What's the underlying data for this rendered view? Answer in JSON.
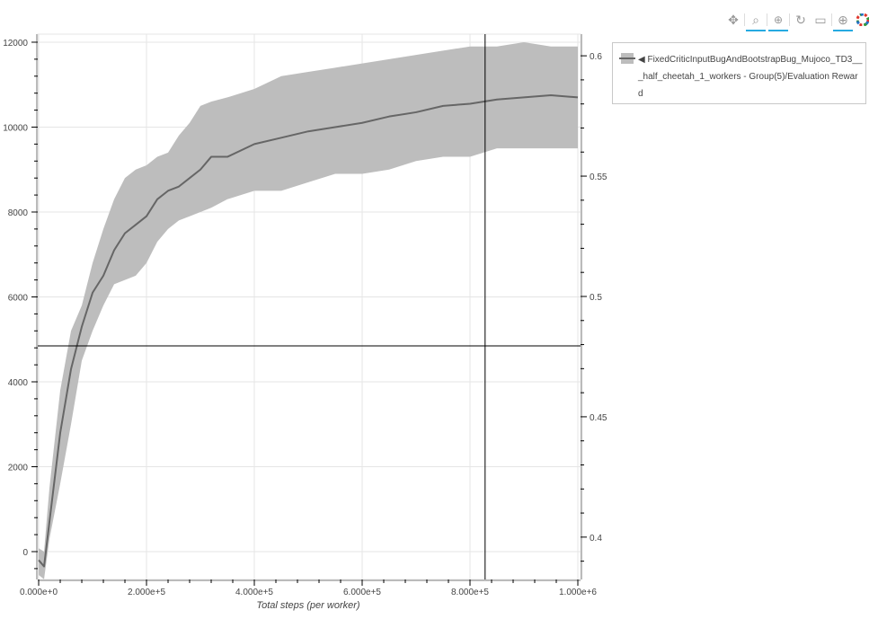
{
  "toolbar": {
    "tools": [
      {
        "name": "pan",
        "icon": "move-icon",
        "active": false
      },
      {
        "name": "box-zoom",
        "icon": "box-zoom-icon",
        "active": true
      },
      {
        "name": "wheel-zoom",
        "icon": "wheel-zoom-icon",
        "active": true
      },
      {
        "name": "reset",
        "icon": "reset-icon",
        "active": false
      },
      {
        "name": "save",
        "icon": "save-icon",
        "active": false
      },
      {
        "name": "crosshair",
        "icon": "crosshair-icon",
        "active": true
      },
      {
        "name": "bokeh",
        "icon": "bokeh-logo-icon",
        "active": false
      }
    ]
  },
  "legend": {
    "label": "◀ FixedCriticInputBugAndBootstrapBug_Mujoco_TD3___half_cheetah_1_workers - Group(5)/Evaluation Reward"
  },
  "chart_data": {
    "type": "line",
    "xlabel": "Total steps (per worker)",
    "ylabel": "",
    "xlim": [
      -1700,
      1005000
    ],
    "ylim": [
      -656,
      12190
    ],
    "y2lim": [
      0.3824,
      0.609
    ],
    "grid": true,
    "legend_position": "outside-top-right",
    "x_ticks": [
      0,
      200000,
      400000,
      600000,
      800000,
      1000000
    ],
    "x_tick_labels": [
      "0.000e+0",
      "2.000e+5",
      "4.000e+5",
      "6.000e+5",
      "8.000e+5",
      "1.000e+6"
    ],
    "y_ticks": [
      0,
      2000,
      4000,
      6000,
      8000,
      10000,
      12000
    ],
    "y_tick_labels": [
      "0",
      "2000",
      "4000",
      "6000",
      "8000",
      "10000",
      "12000"
    ],
    "y2_ticks": [
      0.4,
      0.45,
      0.5,
      0.55,
      0.6
    ],
    "y2_tick_labels": [
      "0.4",
      "0.45",
      "0.5",
      "0.55",
      "0.6"
    ],
    "crosshair": {
      "x": 828000,
      "y": 4847
    },
    "colors": {
      "band": "#bdbdbd",
      "line": "#666666",
      "crosshair": "#000000"
    },
    "series": [
      {
        "name": "◀ FixedCriticInputBugAndBootstrapBug_Mujoco_TD3___half_cheetah_1_workers - Group(5)/Evaluation Reward",
        "x": [
          0,
          10000,
          20000,
          40000,
          60000,
          80000,
          100000,
          120000,
          140000,
          160000,
          180000,
          200000,
          220000,
          240000,
          260000,
          280000,
          300000,
          320000,
          350000,
          400000,
          450000,
          500000,
          550000,
          600000,
          650000,
          700000,
          750000,
          800000,
          850000,
          900000,
          950000,
          1000000
        ],
        "mean": [
          -200,
          -350,
          700,
          2800,
          4300,
          5300,
          6100,
          6500,
          7100,
          7500,
          7700,
          7900,
          8300,
          8500,
          8600,
          8800,
          9000,
          9300,
          9300,
          9600,
          9750,
          9900,
          10000,
          10100,
          10250,
          10350,
          10500,
          10550,
          10650,
          10700,
          10750,
          10700
        ],
        "upper": [
          80,
          0,
          1500,
          3800,
          5200,
          5800,
          6800,
          7600,
          8300,
          8800,
          9000,
          9100,
          9300,
          9400,
          9800,
          10100,
          10500,
          10600,
          10700,
          10900,
          11200,
          11300,
          11400,
          11500,
          11600,
          11700,
          11800,
          11900,
          11900,
          12000,
          11900,
          11900
        ],
        "lower": [
          -550,
          -650,
          300,
          1600,
          3000,
          4500,
          5200,
          5800,
          6300,
          6400,
          6500,
          6800,
          7300,
          7600,
          7800,
          7900,
          8000,
          8100,
          8300,
          8500,
          8500,
          8700,
          8900,
          8900,
          9000,
          9200,
          9300,
          9300,
          9500,
          9500,
          9500,
          9500
        ]
      }
    ]
  }
}
